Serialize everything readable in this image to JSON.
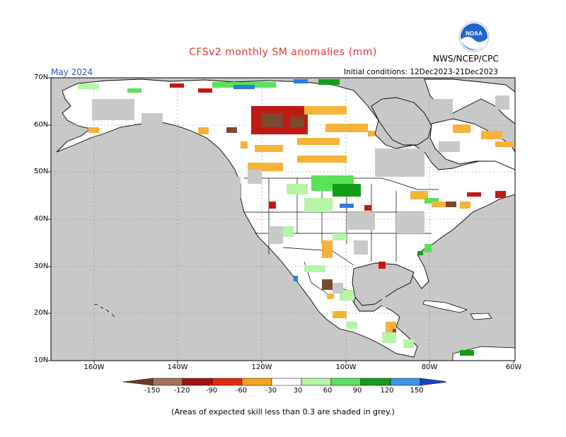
{
  "title": "CFSv2 monthly SM anomalies (mm)",
  "agency": "NWS/NCEP/CPC",
  "month": "May 2024",
  "initial_conditions": "Initial conditions: 12Dec2023-21Dec2023",
  "logo_text": "NOAA",
  "lat_labels": [
    "70N",
    "60N",
    "50N",
    "40N",
    "30N",
    "20N",
    "10N"
  ],
  "lon_labels": [
    "160W",
    "140W",
    "120W",
    "100W",
    "80W",
    "60W"
  ],
  "legend": {
    "ticks": [
      "-150",
      "-120",
      "-90",
      "-60",
      "-30",
      "30",
      "60",
      "90",
      "120",
      "150"
    ],
    "colors": [
      "#6b3a2a",
      "#a5715a",
      "#a40f12",
      "#e02b0f",
      "#f5a21e",
      "#ffffff",
      "#b5f5a5",
      "#5ae25a",
      "#139c17",
      "#3d94e6",
      "#1b45c8"
    ]
  },
  "footer": "(Areas of expected skill less than 0.3 are shaded in grey.)",
  "colors": {
    "background_grey": "#c8c8c8",
    "title": "#e8332f",
    "month": "#2b55d6"
  }
}
